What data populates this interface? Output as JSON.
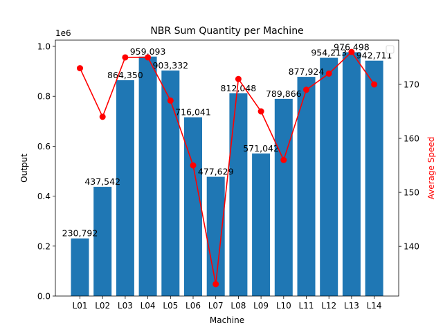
{
  "chart_data": {
    "type": "bar",
    "title": "NBR Sum Quantity per Machine",
    "xlabel": "Machine",
    "ylabel": "Output",
    "y2label": "Average Speed",
    "y_offset_text": "1e6",
    "categories": [
      "L01",
      "L02",
      "L03",
      "L04",
      "L05",
      "L06",
      "L07",
      "L08",
      "L09",
      "L10",
      "L11",
      "L12",
      "L13",
      "L14"
    ],
    "bar_series": {
      "values": [
        230792,
        437542,
        864350,
        959093,
        903332,
        716041,
        477629,
        812048,
        571042,
        789866,
        877924,
        954213,
        976498,
        942711
      ],
      "labels": [
        "230,792",
        "437,542",
        "864,350",
        "959,093",
        "903,332",
        "716,041",
        "477,629",
        "812,048",
        "571,042",
        "789,866",
        "877,924",
        "954,213",
        "976,498",
        "942,711"
      ],
      "color": "#1f77b4"
    },
    "line_series": {
      "values": [
        173,
        164,
        175,
        175,
        167,
        155,
        133,
        171,
        165,
        156,
        169,
        172,
        176,
        170
      ],
      "color": "#ff0000"
    },
    "ylim": [
      0,
      1025000
    ],
    "y_ticks": [
      0,
      200000,
      400000,
      600000,
      800000,
      1000000
    ],
    "y_tick_labels": [
      "0.0",
      "0.2",
      "0.4",
      "0.6",
      "0.8",
      "1.0"
    ],
    "y2lim": [
      130.8,
      178.2
    ],
    "y2_ticks": [
      140,
      150,
      160,
      170
    ],
    "y2_tick_labels": [
      "140",
      "150",
      "160",
      "170"
    ],
    "legend": "top-right, empty",
    "grid": false
  }
}
